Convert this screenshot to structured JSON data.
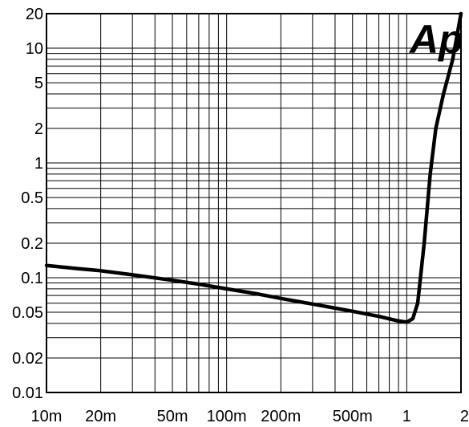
{
  "chart_data": {
    "type": "line",
    "title": "",
    "xlabel": "",
    "ylabel": "",
    "xscale": "log",
    "yscale": "log",
    "xlim": [
      0.01,
      2
    ],
    "ylim": [
      0.01,
      20
    ],
    "grid": true,
    "x_ticks": [
      {
        "value": 0.01,
        "label": "10m"
      },
      {
        "value": 0.02,
        "label": "20m"
      },
      {
        "value": 0.05,
        "label": "50m"
      },
      {
        "value": 0.1,
        "label": "100m"
      },
      {
        "value": 0.2,
        "label": "200m"
      },
      {
        "value": 0.5,
        "label": "500m"
      },
      {
        "value": 1,
        "label": "1"
      },
      {
        "value": 2,
        "label": "2"
      }
    ],
    "y_ticks": [
      {
        "value": 0.01,
        "label": "0.01"
      },
      {
        "value": 0.02,
        "label": "0.02"
      },
      {
        "value": 0.05,
        "label": "0.05"
      },
      {
        "value": 0.1,
        "label": "0.1"
      },
      {
        "value": 0.2,
        "label": "0.2"
      },
      {
        "value": 0.5,
        "label": "0.5"
      },
      {
        "value": 1,
        "label": "1"
      },
      {
        "value": 2,
        "label": "2"
      },
      {
        "value": 5,
        "label": "5"
      },
      {
        "value": 10,
        "label": "10"
      },
      {
        "value": 20,
        "label": "20"
      }
    ],
    "series": [
      {
        "color": "#000000",
        "x": [
          0.01,
          0.015,
          0.02,
          0.03,
          0.05,
          0.07,
          0.1,
          0.15,
          0.2,
          0.3,
          0.5,
          0.7,
          0.9,
          1.0,
          1.08,
          1.15,
          1.25,
          1.35,
          1.45,
          1.6,
          1.8,
          2.0
        ],
        "y": [
          0.128,
          0.12,
          0.115,
          0.106,
          0.095,
          0.088,
          0.08,
          0.072,
          0.066,
          0.059,
          0.051,
          0.046,
          0.042,
          0.041,
          0.044,
          0.06,
          0.2,
          0.8,
          2.0,
          4.0,
          8.0,
          20.0
        ]
      }
    ],
    "logo_text": "Ap",
    "colors": {
      "grid": "#000000",
      "line": "#000000",
      "background": "#ffffff"
    }
  }
}
